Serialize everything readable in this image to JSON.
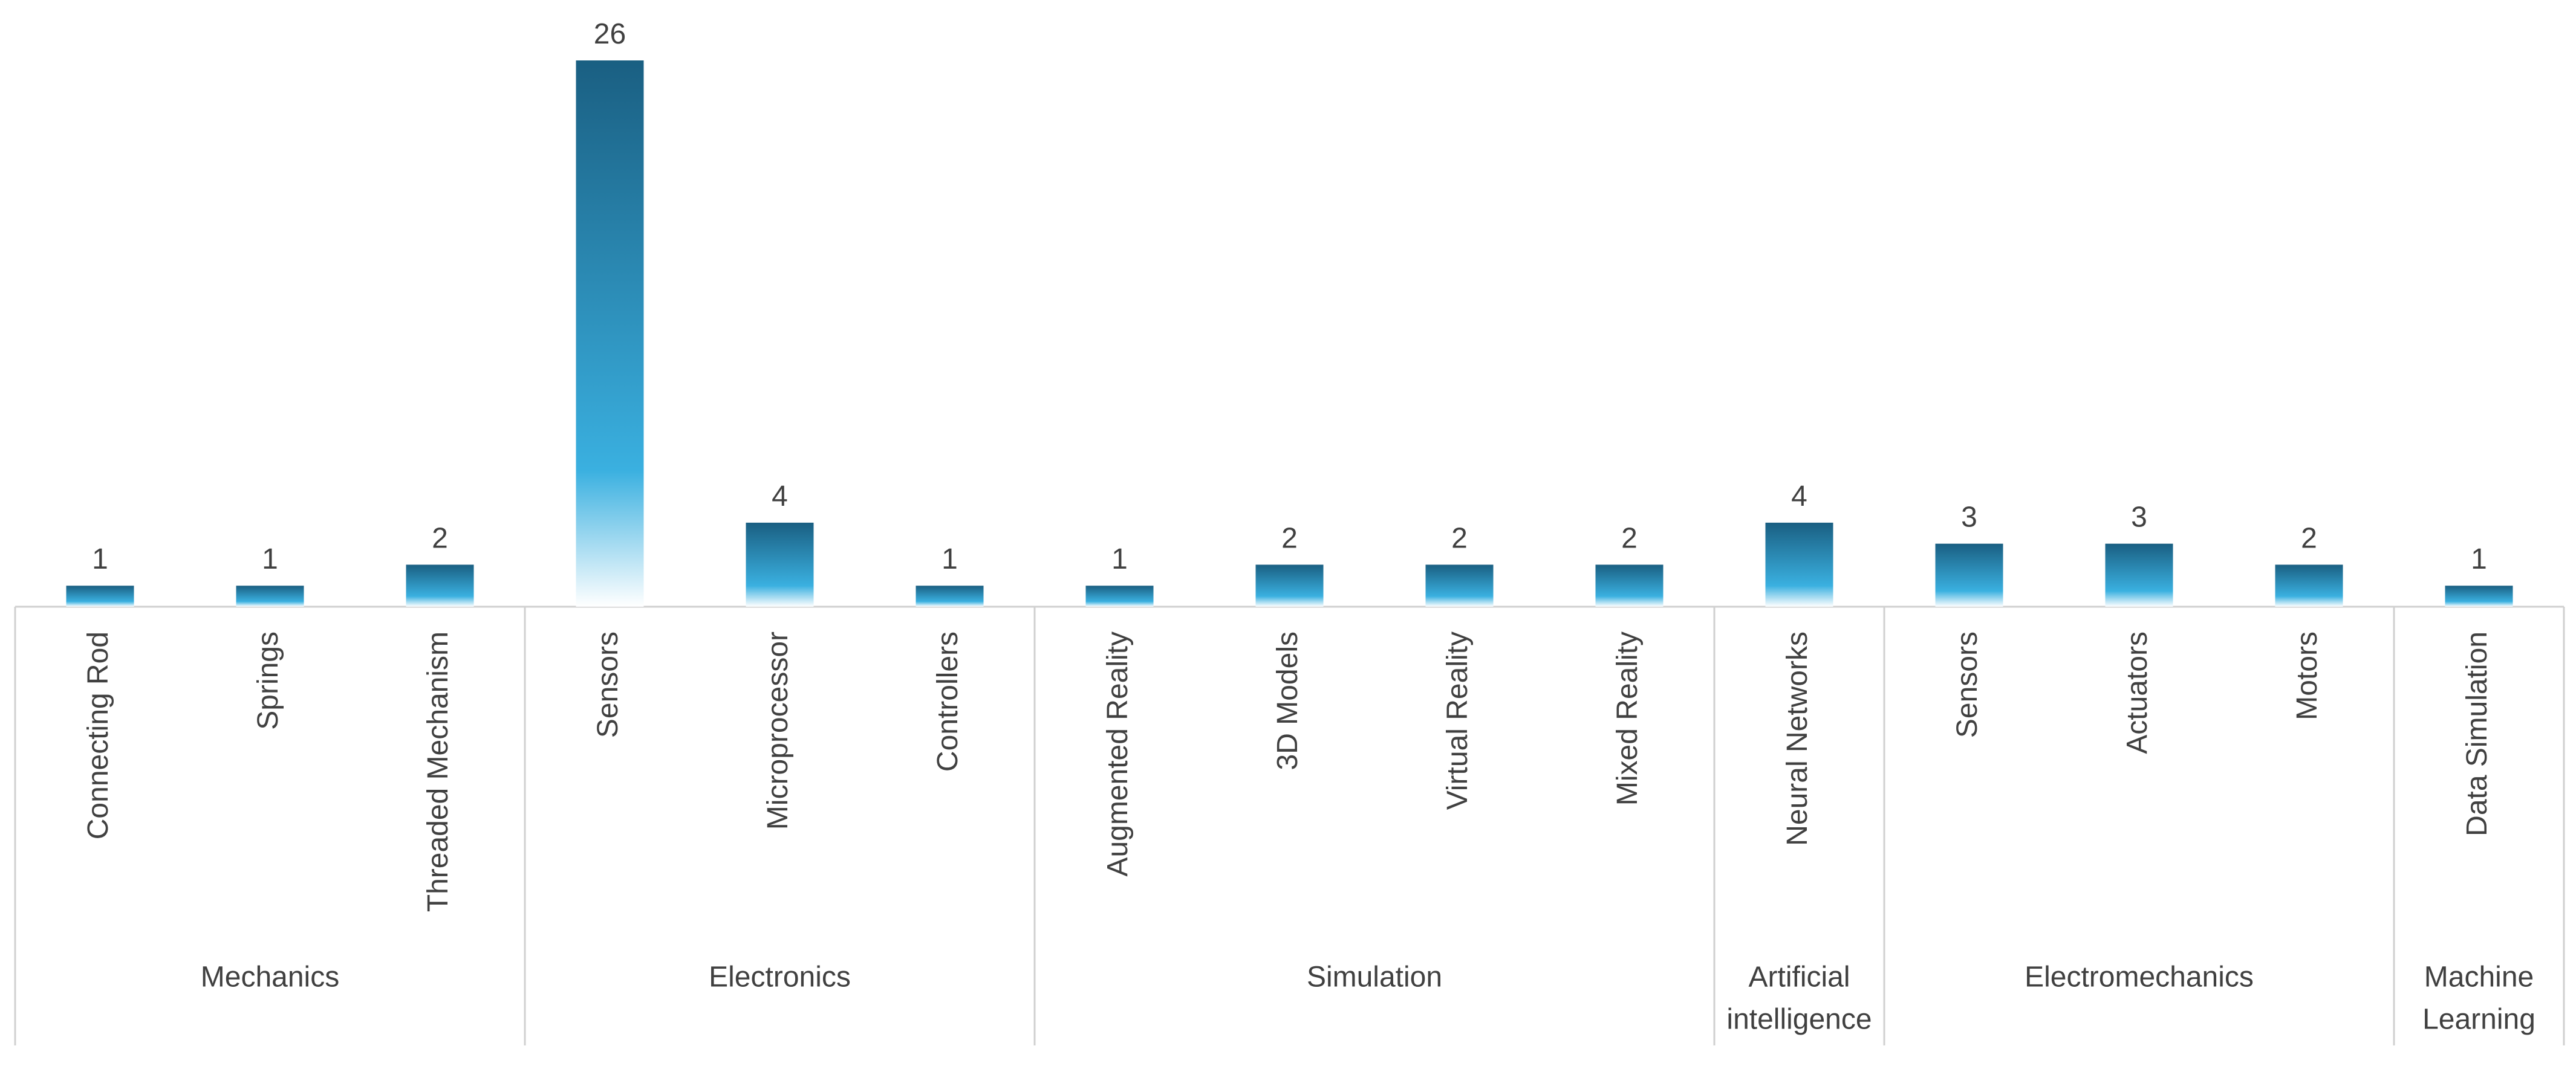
{
  "chart_data": {
    "type": "bar",
    "title": "",
    "xlabel": "",
    "ylabel": "",
    "ylim": [
      0,
      26
    ],
    "grid": false,
    "legend": "none",
    "data_labels": true,
    "colors": {
      "bar_top": "#1a5f82",
      "bar_mid": "#3ab0e0",
      "bar_bottom": "#ffffff",
      "axis": "#d0d0d0",
      "text": "#404040"
    },
    "categories": [
      "Connecting Rod",
      "Springs",
      "Threaded Mechanism",
      "Sensors",
      "Microprocessor",
      "Controllers",
      "Augmented Reality",
      "3D Models",
      "Virtual Reality",
      "Mixed Reality",
      "Neural Networks",
      "Sensors",
      "Actuators",
      "Motors",
      "Data Simulation"
    ],
    "values": [
      1,
      1,
      2,
      26,
      4,
      1,
      1,
      2,
      2,
      2,
      4,
      3,
      3,
      2,
      1
    ],
    "groups": [
      {
        "name": "Mechanics",
        "lines": [
          "Mechanics"
        ],
        "count": 3
      },
      {
        "name": "Electronics",
        "lines": [
          "Electronics"
        ],
        "count": 3
      },
      {
        "name": "Simulation",
        "lines": [
          "Simulation"
        ],
        "count": 4
      },
      {
        "name": "Artificial intelligence",
        "lines": [
          "Artificial",
          "intelligence"
        ],
        "count": 1
      },
      {
        "name": "Electromechanics",
        "lines": [
          "Electromechanics"
        ],
        "count": 3
      },
      {
        "name": "Machine Learning",
        "lines": [
          "Machine",
          "Learning"
        ],
        "count": 1
      }
    ]
  }
}
